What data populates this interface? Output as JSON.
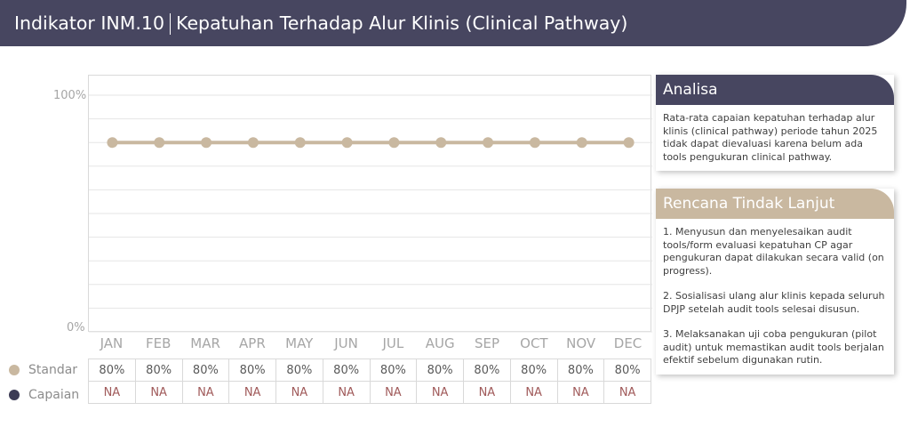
{
  "header": {
    "indicator": "Indikator INM.10",
    "title": "Kepatuhan Terhadap Alur Klinis (Clinical Pathway)",
    "bg_color": "#474660"
  },
  "chart_data": {
    "type": "line",
    "categories": [
      "JAN",
      "FEB",
      "MAR",
      "APR",
      "MAY",
      "JUN",
      "JUL",
      "AUG",
      "SEP",
      "OCT",
      "NOV",
      "DEC"
    ],
    "series": [
      {
        "name": "Standar",
        "values": [
          80,
          80,
          80,
          80,
          80,
          80,
          80,
          80,
          80,
          80,
          80,
          80
        ],
        "color": "#c9b8a0"
      },
      {
        "name": "Capaian",
        "values": [
          null,
          null,
          null,
          null,
          null,
          null,
          null,
          null,
          null,
          null,
          null,
          null
        ],
        "color": "#3c3b55"
      }
    ],
    "yticks": [
      "100%",
      "0%"
    ],
    "ylim": [
      0,
      100
    ],
    "grid": true
  },
  "table": {
    "standar_label": "Standar",
    "capaian_label": "Capaian",
    "standar_values": [
      "80%",
      "80%",
      "80%",
      "80%",
      "80%",
      "80%",
      "80%",
      "80%",
      "80%",
      "80%",
      "80%",
      "80%"
    ],
    "capaian_values": [
      "NA",
      "NA",
      "NA",
      "NA",
      "NA",
      "NA",
      "NA",
      "NA",
      "NA",
      "NA",
      "NA",
      "NA"
    ]
  },
  "analisa": {
    "title": "Analisa",
    "text": "Rata-rata capaian kepatuhan terhadap alur klinis (clinical pathway) periode tahun 2025  tidak dapat dievaluasi karena belum ada tools pengukuran clinical pathway.",
    "color": "#474660"
  },
  "rtl": {
    "title": "Rencana Tindak Lanjut",
    "items": [
      "1. Menyusun dan menyelesaikan audit tools/form evaluasi kepatuhan CP agar pengukuran dapat dilakukan secara valid (on progress).",
      "2. Sosialisasi ulang alur klinis kepada seluruh DPJP setelah audit tools selesai disusun.",
      "3. Melaksanakan uji coba pengukuran (pilot audit) untuk memastikan audit tools berjalan efektif sebelum digunakan rutin."
    ],
    "color": "#c9b8a0"
  }
}
